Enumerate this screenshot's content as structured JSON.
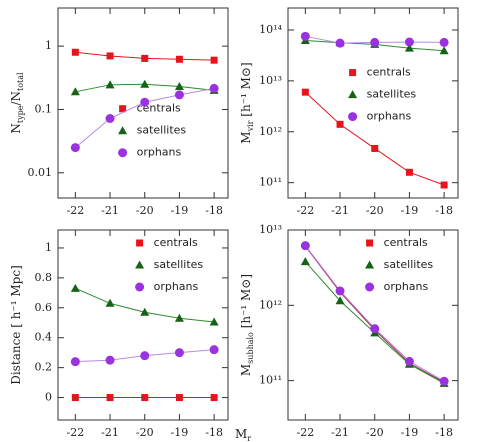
{
  "chart_data": [
    {
      "type": "line",
      "ylog": true,
      "legend": "lower right",
      "ylabel": [
        {
          "text": "N"
        },
        {
          "text": "type",
          "sub": true
        },
        {
          "text": "/N"
        },
        {
          "text": "total",
          "sub": true
        }
      ],
      "x": [
        -22,
        -21,
        -20,
        -19,
        -18
      ],
      "xlim": [
        -22.5,
        -17.6
      ],
      "xticks": [
        -22,
        -21,
        -20,
        -19,
        -18
      ],
      "ylim": [
        0.004,
        4
      ],
      "yticks": [
        1,
        0.1,
        0.01
      ],
      "series": [
        {
          "name": "centrals",
          "color": "#e8141c",
          "line_color": "#e8141c",
          "marker": "square",
          "values": [
            0.8,
            0.7,
            0.64,
            0.62,
            0.6
          ]
        },
        {
          "name": "satellites",
          "color": "#166216",
          "line_color": "#2e8b2e",
          "marker": "triangle",
          "values": [
            0.19,
            0.245,
            0.25,
            0.23,
            0.2
          ]
        },
        {
          "name": "orphans",
          "color": "#9a32e0",
          "line_color": "#b88ae8",
          "marker": "circle",
          "values": [
            0.025,
            0.072,
            0.13,
            0.17,
            0.215
          ]
        }
      ]
    },
    {
      "type": "line",
      "ylog": true,
      "legend": "center right",
      "ylabel": [
        {
          "text": "M"
        },
        {
          "text": "vir",
          "sub": true
        },
        {
          "text": " [h⁻¹ M⊙]"
        }
      ],
      "x": [
        -22,
        -21,
        -20,
        -19,
        -18
      ],
      "xlim": [
        -22.5,
        -17.6
      ],
      "xticks": [
        -22,
        -21,
        -20,
        -19,
        -18
      ],
      "ylim": [
        50000000000.0,
        270000000000000.0
      ],
      "yticks": [
        {
          "value": 100000000000000.0,
          "label": "10¹⁴"
        },
        {
          "value": 10000000000000.0,
          "label": "10¹³"
        },
        {
          "value": 1000000000000.0,
          "label": "10¹²"
        },
        {
          "value": 100000000000.0,
          "label": "10¹¹"
        }
      ],
      "series": [
        {
          "name": "centrals",
          "color": "#e8141c",
          "line_color": "#e8141c",
          "marker": "square",
          "values": [
            6000000000000.0,
            1400000000000.0,
            470000000000.0,
            160000000000.0,
            90000000000.0
          ]
        },
        {
          "name": "satellites",
          "color": "#166216",
          "line_color": "#2e8b2e",
          "marker": "triangle",
          "values": [
            62000000000000.0,
            56000000000000.0,
            52000000000000.0,
            44000000000000.0,
            39000000000000.0
          ]
        },
        {
          "name": "orphans",
          "color": "#9a32e0",
          "line_color": "#b88ae8",
          "marker": "circle",
          "values": [
            75000000000000.0,
            55000000000000.0,
            57000000000000.0,
            58000000000000.0,
            57000000000000.0
          ]
        }
      ]
    },
    {
      "type": "line",
      "ylog": false,
      "legend": "upper right",
      "ylabel": [
        {
          "text": "Distance [ h⁻¹ Mpc]"
        }
      ],
      "x": [
        -22,
        -21,
        -20,
        -19,
        -18
      ],
      "xlim": [
        -22.5,
        -17.6
      ],
      "xticks": [
        -22,
        -21,
        -20,
        -19,
        -18
      ],
      "ylim": [
        -0.15,
        1.12
      ],
      "yticks": [
        0,
        0.2,
        0.4,
        0.6,
        0.8,
        1
      ],
      "series": [
        {
          "name": "centrals",
          "color": "#e8141c",
          "line_color": "#e8141c",
          "marker": "square",
          "values": [
            0,
            0,
            0,
            0,
            0
          ]
        },
        {
          "name": "satellites",
          "color": "#166216",
          "line_color": "#2e8b2e",
          "marker": "triangle",
          "values": [
            0.73,
            0.63,
            0.57,
            0.53,
            0.505
          ]
        },
        {
          "name": "orphans",
          "color": "#9a32e0",
          "line_color": "#b88ae8",
          "marker": "circle",
          "values": [
            0.24,
            0.25,
            0.28,
            0.3,
            0.32
          ]
        }
      ]
    },
    {
      "type": "line",
      "ylog": true,
      "legend": "upper right",
      "ylabel": [
        {
          "text": "M"
        },
        {
          "text": "subhalo",
          "sub": true
        },
        {
          "text": " [h⁻¹ M⊙]"
        }
      ],
      "x": [
        -22,
        -21,
        -20,
        -19,
        -18
      ],
      "xlim": [
        -22.5,
        -17.6
      ],
      "xticks": [
        -22,
        -21,
        -20,
        -19,
        -18
      ],
      "ylim": [
        30000000000.0,
        10000000000000.0
      ],
      "yticks": [
        {
          "value": 10000000000000.0,
          "label": "10¹³"
        },
        {
          "value": 1000000000000.0,
          "label": "10¹²"
        },
        {
          "value": 100000000000.0,
          "label": "10¹¹"
        }
      ],
      "series": [
        {
          "name": "centrals",
          "color": "#e8141c",
          "line_color": "#8a3a3a",
          "marker": "none",
          "values": [
            6100000000000.0,
            1500000000000.0,
            470000000000.0,
            170000000000.0,
            95000000000.0
          ]
        },
        {
          "name": "satellites",
          "color": "#166216",
          "line_color": "#2e8b2e",
          "marker": "triangle",
          "values": [
            3800000000000.0,
            1150000000000.0,
            430000000000.0,
            165000000000.0,
            92000000000.0
          ]
        },
        {
          "name": "orphans",
          "color": "#9a32e0",
          "line_color": "#c86ad8",
          "marker": "circle",
          "values": [
            6200000000000.0,
            1550000000000.0,
            490000000000.0,
            180000000000.0,
            98000000000.0
          ]
        }
      ]
    }
  ],
  "xlabel": [
    {
      "text": "M"
    },
    {
      "text": "r",
      "sub": true
    }
  ]
}
